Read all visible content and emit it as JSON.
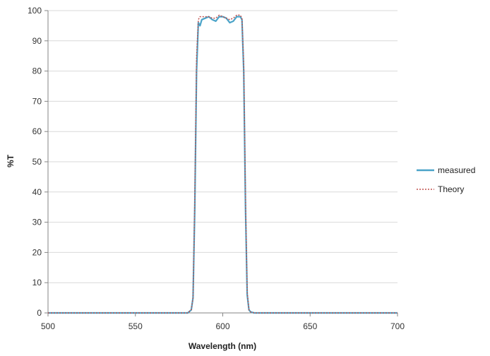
{
  "chart_data": {
    "type": "line",
    "title": "",
    "xlabel": "Wavelength (nm)",
    "ylabel": "%T",
    "xlim": [
      500,
      700
    ],
    "ylim": [
      0,
      100
    ],
    "x_ticks": [
      500,
      550,
      600,
      650,
      700
    ],
    "y_ticks": [
      0,
      10,
      20,
      30,
      40,
      50,
      60,
      70,
      80,
      90,
      100
    ],
    "grid": "horizontal",
    "legend_position": "right",
    "series": [
      {
        "name": "measured",
        "color": "#4aa3c8",
        "style": "solid",
        "x": [
          500,
          580,
          582,
          583,
          584,
          585,
          586,
          587,
          588,
          590,
          592,
          594,
          596,
          598,
          600,
          602,
          604,
          606,
          608,
          610,
          611,
          612,
          613,
          614,
          615,
          616,
          618,
          620,
          700
        ],
        "y": [
          0,
          0,
          1,
          5,
          35,
          80,
          96,
          95,
          97,
          97.5,
          98,
          97,
          96.5,
          98,
          98,
          97.5,
          96,
          96.5,
          98,
          98,
          97,
          80,
          35,
          6,
          1,
          0.3,
          0,
          0,
          0
        ]
      },
      {
        "name": "Theory",
        "color": "#c0504d",
        "style": "dotted",
        "x": [
          500,
          580,
          582,
          583,
          584,
          585,
          586,
          587,
          588,
          590,
          592,
          594,
          596,
          598,
          600,
          602,
          604,
          606,
          608,
          610,
          611,
          612,
          613,
          614,
          615,
          616,
          618,
          620,
          700
        ],
        "y": [
          0,
          0,
          1,
          5,
          38,
          85,
          97,
          98,
          98,
          98,
          98,
          97.5,
          97.5,
          98.5,
          98,
          97.5,
          97,
          97.5,
          98.5,
          98.5,
          97.5,
          82,
          38,
          7,
          1,
          0.3,
          0,
          0,
          0
        ]
      }
    ]
  }
}
